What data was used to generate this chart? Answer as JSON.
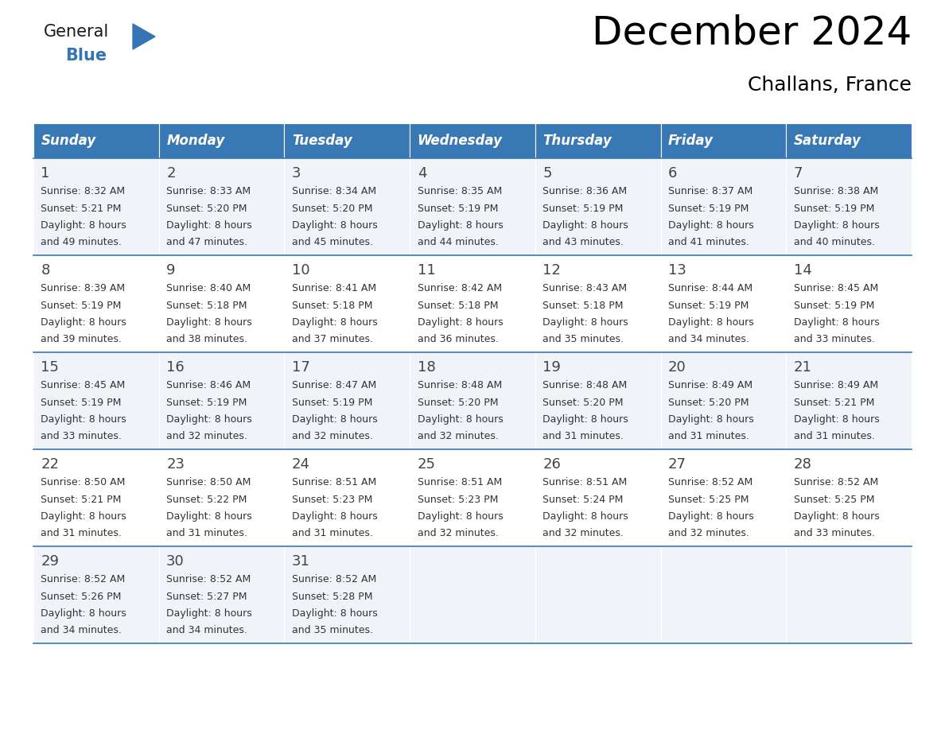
{
  "title": "December 2024",
  "subtitle": "Challans, France",
  "header_color": "#3878b4",
  "header_text_color": "#ffffff",
  "day_names": [
    "Sunday",
    "Monday",
    "Tuesday",
    "Wednesday",
    "Thursday",
    "Friday",
    "Saturday"
  ],
  "weeks": [
    [
      {
        "day": 1,
        "sunrise": "8:32 AM",
        "sunset": "5:21 PM",
        "daylight_l1": "Daylight: 8 hours",
        "daylight_l2": "and 49 minutes."
      },
      {
        "day": 2,
        "sunrise": "8:33 AM",
        "sunset": "5:20 PM",
        "daylight_l1": "Daylight: 8 hours",
        "daylight_l2": "and 47 minutes."
      },
      {
        "day": 3,
        "sunrise": "8:34 AM",
        "sunset": "5:20 PM",
        "daylight_l1": "Daylight: 8 hours",
        "daylight_l2": "and 45 minutes."
      },
      {
        "day": 4,
        "sunrise": "8:35 AM",
        "sunset": "5:19 PM",
        "daylight_l1": "Daylight: 8 hours",
        "daylight_l2": "and 44 minutes."
      },
      {
        "day": 5,
        "sunrise": "8:36 AM",
        "sunset": "5:19 PM",
        "daylight_l1": "Daylight: 8 hours",
        "daylight_l2": "and 43 minutes."
      },
      {
        "day": 6,
        "sunrise": "8:37 AM",
        "sunset": "5:19 PM",
        "daylight_l1": "Daylight: 8 hours",
        "daylight_l2": "and 41 minutes."
      },
      {
        "day": 7,
        "sunrise": "8:38 AM",
        "sunset": "5:19 PM",
        "daylight_l1": "Daylight: 8 hours",
        "daylight_l2": "and 40 minutes."
      }
    ],
    [
      {
        "day": 8,
        "sunrise": "8:39 AM",
        "sunset": "5:19 PM",
        "daylight_l1": "Daylight: 8 hours",
        "daylight_l2": "and 39 minutes."
      },
      {
        "day": 9,
        "sunrise": "8:40 AM",
        "sunset": "5:18 PM",
        "daylight_l1": "Daylight: 8 hours",
        "daylight_l2": "and 38 minutes."
      },
      {
        "day": 10,
        "sunrise": "8:41 AM",
        "sunset": "5:18 PM",
        "daylight_l1": "Daylight: 8 hours",
        "daylight_l2": "and 37 minutes."
      },
      {
        "day": 11,
        "sunrise": "8:42 AM",
        "sunset": "5:18 PM",
        "daylight_l1": "Daylight: 8 hours",
        "daylight_l2": "and 36 minutes."
      },
      {
        "day": 12,
        "sunrise": "8:43 AM",
        "sunset": "5:18 PM",
        "daylight_l1": "Daylight: 8 hours",
        "daylight_l2": "and 35 minutes."
      },
      {
        "day": 13,
        "sunrise": "8:44 AM",
        "sunset": "5:19 PM",
        "daylight_l1": "Daylight: 8 hours",
        "daylight_l2": "and 34 minutes."
      },
      {
        "day": 14,
        "sunrise": "8:45 AM",
        "sunset": "5:19 PM",
        "daylight_l1": "Daylight: 8 hours",
        "daylight_l2": "and 33 minutes."
      }
    ],
    [
      {
        "day": 15,
        "sunrise": "8:45 AM",
        "sunset": "5:19 PM",
        "daylight_l1": "Daylight: 8 hours",
        "daylight_l2": "and 33 minutes."
      },
      {
        "day": 16,
        "sunrise": "8:46 AM",
        "sunset": "5:19 PM",
        "daylight_l1": "Daylight: 8 hours",
        "daylight_l2": "and 32 minutes."
      },
      {
        "day": 17,
        "sunrise": "8:47 AM",
        "sunset": "5:19 PM",
        "daylight_l1": "Daylight: 8 hours",
        "daylight_l2": "and 32 minutes."
      },
      {
        "day": 18,
        "sunrise": "8:48 AM",
        "sunset": "5:20 PM",
        "daylight_l1": "Daylight: 8 hours",
        "daylight_l2": "and 32 minutes."
      },
      {
        "day": 19,
        "sunrise": "8:48 AM",
        "sunset": "5:20 PM",
        "daylight_l1": "Daylight: 8 hours",
        "daylight_l2": "and 31 minutes."
      },
      {
        "day": 20,
        "sunrise": "8:49 AM",
        "sunset": "5:20 PM",
        "daylight_l1": "Daylight: 8 hours",
        "daylight_l2": "and 31 minutes."
      },
      {
        "day": 21,
        "sunrise": "8:49 AM",
        "sunset": "5:21 PM",
        "daylight_l1": "Daylight: 8 hours",
        "daylight_l2": "and 31 minutes."
      }
    ],
    [
      {
        "day": 22,
        "sunrise": "8:50 AM",
        "sunset": "5:21 PM",
        "daylight_l1": "Daylight: 8 hours",
        "daylight_l2": "and 31 minutes."
      },
      {
        "day": 23,
        "sunrise": "8:50 AM",
        "sunset": "5:22 PM",
        "daylight_l1": "Daylight: 8 hours",
        "daylight_l2": "and 31 minutes."
      },
      {
        "day": 24,
        "sunrise": "8:51 AM",
        "sunset": "5:23 PM",
        "daylight_l1": "Daylight: 8 hours",
        "daylight_l2": "and 31 minutes."
      },
      {
        "day": 25,
        "sunrise": "8:51 AM",
        "sunset": "5:23 PM",
        "daylight_l1": "Daylight: 8 hours",
        "daylight_l2": "and 32 minutes."
      },
      {
        "day": 26,
        "sunrise": "8:51 AM",
        "sunset": "5:24 PM",
        "daylight_l1": "Daylight: 8 hours",
        "daylight_l2": "and 32 minutes."
      },
      {
        "day": 27,
        "sunrise": "8:52 AM",
        "sunset": "5:25 PM",
        "daylight_l1": "Daylight: 8 hours",
        "daylight_l2": "and 32 minutes."
      },
      {
        "day": 28,
        "sunrise": "8:52 AM",
        "sunset": "5:25 PM",
        "daylight_l1": "Daylight: 8 hours",
        "daylight_l2": "and 33 minutes."
      }
    ],
    [
      {
        "day": 29,
        "sunrise": "8:52 AM",
        "sunset": "5:26 PM",
        "daylight_l1": "Daylight: 8 hours",
        "daylight_l2": "and 34 minutes."
      },
      {
        "day": 30,
        "sunrise": "8:52 AM",
        "sunset": "5:27 PM",
        "daylight_l1": "Daylight: 8 hours",
        "daylight_l2": "and 34 minutes."
      },
      {
        "day": 31,
        "sunrise": "8:52 AM",
        "sunset": "5:28 PM",
        "daylight_l1": "Daylight: 8 hours",
        "daylight_l2": "and 35 minutes."
      },
      null,
      null,
      null,
      null
    ]
  ],
  "logo_general_color": "#1a1a1a",
  "logo_blue_color": "#3575b5",
  "grid_line_color": "#3878b4",
  "text_color": "#333333",
  "cell_bg_odd": "#f0f4f8",
  "cell_bg_even": "#ffffff",
  "title_fontsize": 36,
  "subtitle_fontsize": 18,
  "header_fontsize": 12,
  "day_num_fontsize": 13,
  "cell_text_fontsize": 9
}
